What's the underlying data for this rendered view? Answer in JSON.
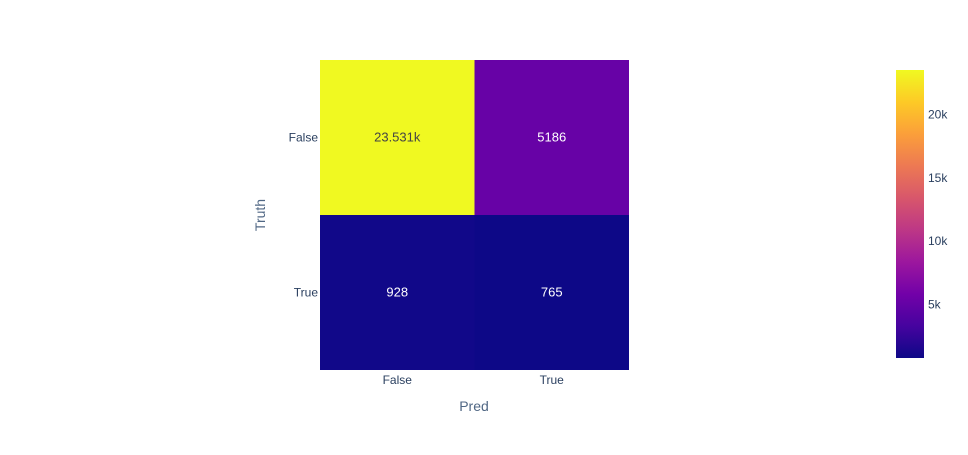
{
  "chart_data": {
    "type": "heatmap",
    "title": "",
    "xlabel": "Pred",
    "ylabel": "Truth",
    "x_categories": [
      "False",
      "True"
    ],
    "y_categories": [
      "False",
      "True"
    ],
    "values": [
      [
        23531,
        5186
      ],
      [
        928,
        765
      ]
    ],
    "cell_labels": [
      [
        "23.531k",
        "5186"
      ],
      [
        "928",
        "765"
      ]
    ],
    "colorscale": "plasma",
    "colorbar": {
      "range": [
        765,
        23531
      ],
      "ticks": [
        5000,
        10000,
        15000,
        20000
      ],
      "tick_labels": [
        "5k",
        "10k",
        "15k",
        "20k"
      ]
    }
  }
}
